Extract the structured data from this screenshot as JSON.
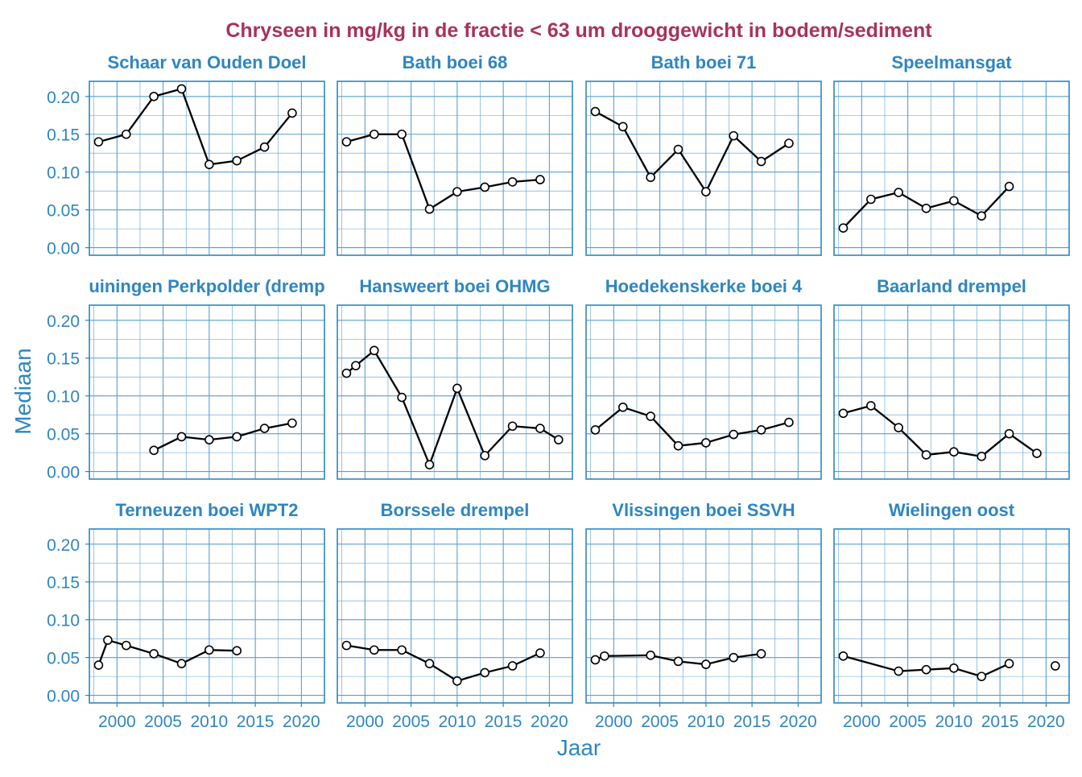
{
  "chart_data": {
    "type": "line",
    "title": "Chryseen in mg/kg in de fractie < 63 um drooggewicht in bodem/sediment",
    "xlabel": "Jaar",
    "ylabel": "Mediaan",
    "xlim": [
      1997,
      2022.5
    ],
    "ylim": [
      -0.01,
      0.22
    ],
    "x_ticks": [
      2000,
      2005,
      2010,
      2015,
      2020
    ],
    "y_ticks": [
      "0.00",
      "0.05",
      "0.10",
      "0.15",
      "0.20"
    ],
    "grid": true,
    "colors": {
      "title": "#a8325e",
      "axis": "#2e86c1",
      "grid": "#5b9ecf",
      "line": "#000000",
      "marker_fill": "#ffffff"
    },
    "panels": [
      {
        "name": "Schaar van Ouden Doel",
        "points": [
          [
            1998,
            0.14
          ],
          [
            2001,
            0.15
          ],
          [
            2004,
            0.2
          ],
          [
            2007,
            0.21
          ],
          [
            2010,
            0.11
          ],
          [
            2013,
            0.115
          ],
          [
            2016,
            0.133
          ],
          [
            2019,
            0.178
          ]
        ]
      },
      {
        "name": "Bath boei 68",
        "points": [
          [
            1998,
            0.14
          ],
          [
            2001,
            0.15
          ],
          [
            2004,
            0.15
          ],
          [
            2007,
            0.051
          ],
          [
            2010,
            0.074
          ],
          [
            2013,
            0.08
          ],
          [
            2016,
            0.087
          ],
          [
            2019,
            0.09
          ]
        ]
      },
      {
        "name": "Bath boei 71",
        "points": [
          [
            1998,
            0.18
          ],
          [
            2001,
            0.16
          ],
          [
            2004,
            0.093
          ],
          [
            2007,
            0.13
          ],
          [
            2010,
            0.074
          ],
          [
            2013,
            0.148
          ],
          [
            2016,
            0.114
          ],
          [
            2019,
            0.138
          ]
        ]
      },
      {
        "name": "Speelmansgat",
        "points": [
          [
            1998,
            0.026
          ],
          [
            2001,
            0.064
          ],
          [
            2004,
            0.073
          ],
          [
            2007,
            0.052
          ],
          [
            2010,
            0.062
          ],
          [
            2013,
            0.042
          ],
          [
            2016,
            0.081
          ]
        ]
      },
      {
        "name": "uiningen Perkpolder (dremp",
        "points": [
          [
            2004,
            0.028
          ],
          [
            2007,
            0.046
          ],
          [
            2010,
            0.042
          ],
          [
            2013,
            0.046
          ],
          [
            2016,
            0.057
          ],
          [
            2019,
            0.064
          ]
        ]
      },
      {
        "name": "Hansweert boei OHMG",
        "points": [
          [
            1998,
            0.13
          ],
          [
            1999,
            0.14
          ],
          [
            2001,
            0.16
          ],
          [
            2004,
            0.098
          ],
          [
            2007,
            0.009
          ],
          [
            2010,
            0.11
          ],
          [
            2013,
            0.021
          ],
          [
            2016,
            0.06
          ],
          [
            2019,
            0.057
          ],
          [
            2021,
            0.042
          ]
        ]
      },
      {
        "name": "Hoedekenskerke boei 4",
        "points": [
          [
            1998,
            0.055
          ],
          [
            2001,
            0.085
          ],
          [
            2004,
            0.073
          ],
          [
            2007,
            0.034
          ],
          [
            2010,
            0.038
          ],
          [
            2013,
            0.049
          ],
          [
            2016,
            0.055
          ],
          [
            2019,
            0.065
          ]
        ]
      },
      {
        "name": "Baarland drempel",
        "points": [
          [
            1998,
            0.077
          ],
          [
            2001,
            0.087
          ],
          [
            2004,
            0.058
          ],
          [
            2007,
            0.022
          ],
          [
            2010,
            0.026
          ],
          [
            2013,
            0.02
          ],
          [
            2016,
            0.05
          ],
          [
            2019,
            0.024
          ]
        ]
      },
      {
        "name": "Terneuzen boei WPT2",
        "points": [
          [
            1998,
            0.04
          ],
          [
            1999,
            0.073
          ],
          [
            2001,
            0.066
          ],
          [
            2004,
            0.055
          ],
          [
            2007,
            0.042
          ],
          [
            2010,
            0.06
          ],
          [
            2013,
            0.059
          ]
        ]
      },
      {
        "name": "Borssele drempel",
        "points": [
          [
            1998,
            0.066
          ],
          [
            2001,
            0.06
          ],
          [
            2004,
            0.06
          ],
          [
            2007,
            0.042
          ],
          [
            2010,
            0.019
          ],
          [
            2013,
            0.03
          ],
          [
            2016,
            0.039
          ],
          [
            2019,
            0.056
          ]
        ]
      },
      {
        "name": "Vlissingen boei SSVH",
        "points": [
          [
            1998,
            0.047
          ],
          [
            1999,
            0.052
          ],
          [
            2004,
            0.053
          ],
          [
            2007,
            0.045
          ],
          [
            2010,
            0.041
          ],
          [
            2013,
            0.05
          ],
          [
            2016,
            0.055
          ]
        ]
      },
      {
        "name": "Wielingen oost",
        "segments": [
          [
            [
              1998,
              0.052
            ],
            [
              2004,
              0.032
            ],
            [
              2007,
              0.034
            ],
            [
              2010,
              0.036
            ],
            [
              2013,
              0.025
            ],
            [
              2016,
              0.042
            ]
          ],
          [
            [
              2021,
              0.039
            ]
          ]
        ]
      }
    ]
  }
}
